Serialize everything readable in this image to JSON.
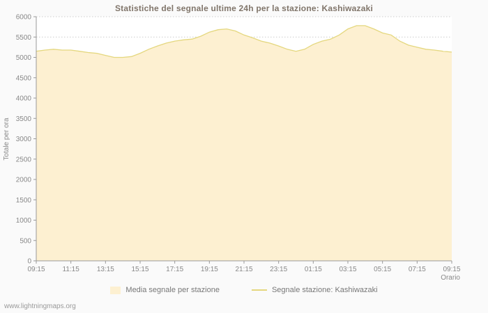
{
  "page": {
    "background": "#fafafa"
  },
  "watermark": "www.lightningmaps.org",
  "legend": {
    "items": [
      {
        "label": "Media segnale per stazione",
        "swatch": "area"
      },
      {
        "label": "Segnale stazione: Kashiwazaki",
        "swatch": "line"
      }
    ]
  },
  "chart_data": {
    "type": "area",
    "title": "Statistiche del segnale ultime 24h per la stazione: Kashiwazaki",
    "xlabel": "Orario",
    "ylabel": "Totale per ora",
    "ylim": [
      0,
      6000
    ],
    "ytick_step": 500,
    "grid": "horizontal-dotted",
    "legend_position": "bottom",
    "x": [
      "09:15",
      "09:45",
      "10:15",
      "10:45",
      "11:15",
      "11:45",
      "12:15",
      "12:45",
      "13:15",
      "13:45",
      "14:15",
      "14:45",
      "15:15",
      "15:45",
      "16:15",
      "16:45",
      "17:15",
      "17:45",
      "18:15",
      "18:45",
      "19:15",
      "19:45",
      "20:15",
      "20:45",
      "21:15",
      "21:45",
      "22:15",
      "22:45",
      "23:15",
      "23:45",
      "00:15",
      "00:45",
      "01:15",
      "01:45",
      "02:15",
      "02:45",
      "03:15",
      "03:45",
      "04:15",
      "04:45",
      "05:15",
      "05:45",
      "06:15",
      "06:45",
      "07:15",
      "07:45",
      "08:15",
      "08:45",
      "09:15"
    ],
    "series": [
      {
        "name": "Media segnale per stazione",
        "values": [
          5150,
          5180,
          5200,
          5180,
          5180,
          5150,
          5120,
          5100,
          5050,
          5000,
          5000,
          5020,
          5100,
          5200,
          5280,
          5350,
          5400,
          5430,
          5450,
          5520,
          5620,
          5680,
          5700,
          5650,
          5550,
          5480,
          5400,
          5350,
          5280,
          5200,
          5150,
          5200,
          5320,
          5400,
          5450,
          5550,
          5700,
          5780,
          5780,
          5700,
          5600,
          5550,
          5400,
          5300,
          5250,
          5200,
          5180,
          5150,
          5130
        ]
      }
    ],
    "x_tick_labels": [
      "09:15",
      "11:15",
      "13:15",
      "15:15",
      "17:15",
      "19:15",
      "21:15",
      "23:15",
      "01:15",
      "03:15",
      "05:15",
      "07:15",
      "09:15"
    ],
    "x_tick_indices": [
      0,
      4,
      8,
      12,
      16,
      20,
      24,
      28,
      32,
      36,
      40,
      44,
      48
    ],
    "colors": {
      "area": "#fdf0d1",
      "line": "#e4d77e",
      "grid": "#cccccc",
      "axis": "#999999",
      "text": "#888888",
      "title": "#80756a",
      "plot_bg": "#ffffff"
    }
  }
}
